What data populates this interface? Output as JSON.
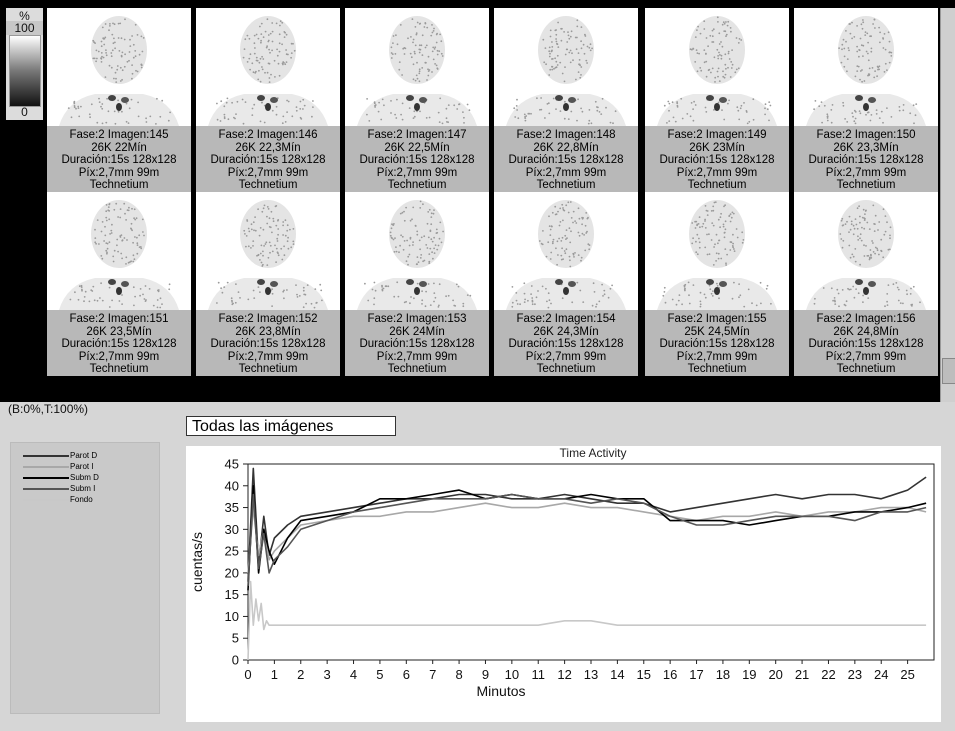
{
  "scale": {
    "unit": "%",
    "max": "100",
    "min": "0"
  },
  "frames": [
    {
      "id": "145",
      "line1": "Fase:2 Imagen:145",
      "line2": "26K 22Mín",
      "line3": "Duración:15s 128x128",
      "line4": "Píx:2,7mm 99m",
      "line5": "Technetium"
    },
    {
      "id": "146",
      "line1": "Fase:2 Imagen:146",
      "line2": "26K 22,3Mín",
      "line3": "Duración:15s 128x128",
      "line4": "Píx:2,7mm 99m",
      "line5": "Technetium"
    },
    {
      "id": "147",
      "line1": "Fase:2 Imagen:147",
      "line2": "26K 22,5Mín",
      "line3": "Duración:15s 128x128",
      "line4": "Píx:2,7mm 99m",
      "line5": "Technetium"
    },
    {
      "id": "148",
      "line1": "Fase:2 Imagen:148",
      "line2": "26K 22,8Mín",
      "line3": "Duración:15s 128x128",
      "line4": "Píx:2,7mm 99m",
      "line5": "Technetium"
    },
    {
      "id": "149",
      "line1": "Fase:2 Imagen:149",
      "line2": "26K 23Mín",
      "line3": "Duración:15s 128x128",
      "line4": "Píx:2,7mm 99m",
      "line5": "Technetium"
    },
    {
      "id": "150",
      "line1": "Fase:2 Imagen:150",
      "line2": "26K 23,3Mín",
      "line3": "Duración:15s 128x128",
      "line4": "Píx:2,7mm 99m",
      "line5": "Technetium"
    },
    {
      "id": "151",
      "line1": "Fase:2 Imagen:151",
      "line2": "26K 23,5Mín",
      "line3": "Duración:15s 128x128",
      "line4": "Píx:2,7mm 99m",
      "line5": "Technetium"
    },
    {
      "id": "152",
      "line1": "Fase:2 Imagen:152",
      "line2": "26K 23,8Mín",
      "line3": "Duración:15s 128x128",
      "line4": "Píx:2,7mm 99m",
      "line5": "Technetium"
    },
    {
      "id": "153",
      "line1": "Fase:2 Imagen:153",
      "line2": "26K 24Mín",
      "line3": "Duración:15s 128x128",
      "line4": "Píx:2,7mm 99m",
      "line5": "Technetium"
    },
    {
      "id": "154",
      "line1": "Fase:2 Imagen:154",
      "line2": "26K 24,3Mín",
      "line3": "Duración:15s 128x128",
      "line4": "Píx:2,7mm 99m",
      "line5": "Technetium"
    },
    {
      "id": "155",
      "line1": "Fase:2 Imagen:155",
      "line2": "25K 24,5Mín",
      "line3": "Duración:15s 128x128",
      "line4": "Píx:2,7mm 99m",
      "line5": "Technetium"
    },
    {
      "id": "156",
      "line1": "Fase:2 Imagen:156",
      "line2": "26K 24,8Mín",
      "line3": "Duración:15s 128x128",
      "line4": "Píx:2,7mm 99m",
      "line5": "Technetium"
    }
  ],
  "status_text": "(B:0%,T:100%)",
  "image_selector": "Todas las imágenes",
  "legend": [
    {
      "label": "Parot D",
      "color": "#333333"
    },
    {
      "label": "Parot I",
      "color": "#a8a8a8"
    },
    {
      "label": "Subm D",
      "color": "#000000"
    },
    {
      "label": "Subm I",
      "color": "#555555"
    },
    {
      "label": "Fondo",
      "color": "#c8c8c8"
    }
  ],
  "chart_data": {
    "type": "line",
    "title": "Time Activity",
    "xlabel": "Minutos",
    "ylabel": "cuentas/s",
    "xlim": [
      0,
      26
    ],
    "ylim": [
      0,
      45
    ],
    "xticks": [
      0,
      1,
      2,
      3,
      4,
      5,
      6,
      7,
      8,
      9,
      10,
      11,
      12,
      13,
      14,
      15,
      16,
      17,
      18,
      19,
      20,
      21,
      22,
      23,
      24,
      25
    ],
    "yticks": [
      0,
      5,
      10,
      15,
      20,
      25,
      30,
      35,
      40,
      45
    ],
    "series": [
      {
        "name": "Parot D",
        "color": "#333333",
        "x": [
          0,
          0.2,
          0.4,
          0.6,
          0.8,
          1,
          1.5,
          2,
          3,
          4,
          5,
          6,
          7,
          8,
          9,
          10,
          11,
          12,
          13,
          14,
          15,
          16,
          17,
          18,
          19,
          20,
          21,
          22,
          23,
          24,
          25,
          25.7
        ],
        "y": [
          18,
          44,
          22,
          33,
          24,
          28,
          31,
          33,
          34,
          35,
          36,
          37,
          37,
          38,
          38,
          37,
          37,
          38,
          37,
          36,
          36,
          34,
          35,
          36,
          37,
          38,
          37,
          38,
          38,
          37,
          39,
          42
        ]
      },
      {
        "name": "Parot I",
        "color": "#a8a8a8",
        "x": [
          0,
          0.2,
          0.4,
          0.6,
          0.8,
          1,
          1.5,
          2,
          3,
          4,
          5,
          6,
          7,
          8,
          9,
          10,
          11,
          12,
          13,
          14,
          15,
          16,
          17,
          18,
          19,
          20,
          21,
          22,
          23,
          24,
          25,
          25.7
        ],
        "y": [
          20,
          35,
          24,
          30,
          23,
          25,
          28,
          31,
          32,
          33,
          33,
          34,
          34,
          35,
          36,
          35,
          35,
          36,
          35,
          35,
          34,
          33,
          32,
          33,
          33,
          34,
          33,
          34,
          34,
          35,
          35,
          34
        ]
      },
      {
        "name": "Subm D",
        "color": "#000000",
        "x": [
          0,
          0.2,
          0.4,
          0.6,
          0.8,
          1,
          1.5,
          2,
          3,
          4,
          5,
          6,
          7,
          8,
          9,
          10,
          11,
          12,
          13,
          14,
          15,
          16,
          17,
          18,
          19,
          20,
          21,
          22,
          23,
          24,
          25,
          25.7
        ],
        "y": [
          16,
          40,
          20,
          30,
          25,
          22,
          28,
          32,
          33,
          34,
          37,
          37,
          38,
          39,
          37,
          38,
          37,
          37,
          38,
          37,
          37,
          32,
          32,
          32,
          31,
          32,
          33,
          33,
          34,
          34,
          35,
          36
        ]
      },
      {
        "name": "Subm I",
        "color": "#555555",
        "x": [
          0,
          0.2,
          0.4,
          0.6,
          0.8,
          1,
          1.5,
          2,
          3,
          4,
          5,
          6,
          7,
          8,
          9,
          10,
          11,
          12,
          13,
          14,
          15,
          16,
          17,
          18,
          19,
          20,
          21,
          22,
          23,
          24,
          25,
          25.7
        ],
        "y": [
          17,
          38,
          21,
          29,
          20,
          23,
          26,
          30,
          32,
          34,
          35,
          36,
          37,
          37,
          37,
          38,
          37,
          37,
          36,
          37,
          36,
          33,
          31,
          31,
          32,
          33,
          33,
          33,
          32,
          34,
          34,
          35
        ]
      },
      {
        "name": "Fondo",
        "color": "#c8c8c8",
        "x": [
          0,
          0.1,
          0.2,
          0.3,
          0.4,
          0.5,
          0.6,
          0.7,
          0.8,
          1,
          2,
          3,
          4,
          5,
          6,
          7,
          8,
          9,
          10,
          11,
          12,
          13,
          14,
          15,
          16,
          17,
          18,
          19,
          20,
          21,
          22,
          23,
          24,
          25,
          25.7
        ],
        "y": [
          0,
          18,
          8,
          14,
          9,
          13,
          7,
          9,
          8,
          8,
          8,
          8,
          8,
          8,
          8,
          8,
          8,
          8,
          8,
          8,
          9,
          9,
          8,
          8,
          8,
          8,
          8,
          8,
          8,
          8,
          8,
          8,
          8,
          8,
          8
        ]
      }
    ]
  }
}
